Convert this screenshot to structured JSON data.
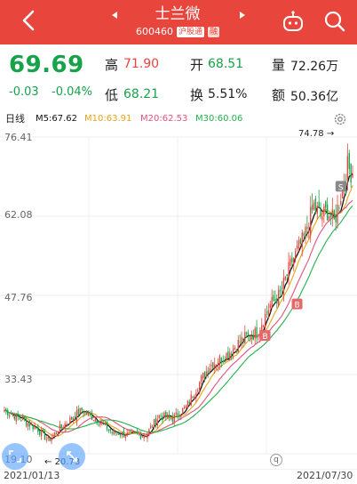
{
  "header": {
    "title": "士兰微",
    "code": "600460",
    "tag_connect": "沪股通",
    "tag_margin": "融",
    "icons": [
      "back-icon",
      "prev-stock-icon",
      "next-stock-icon",
      "robot-icon",
      "search-icon"
    ]
  },
  "quote": {
    "price": "69.69",
    "change": "-0.03",
    "change_pct": "-0.04%",
    "high_label": "高",
    "high": "71.90",
    "low_label": "低",
    "low": "68.21",
    "open_label": "开",
    "open": "68.51",
    "turnover_label": "换",
    "turnover": "5.51%",
    "volume_label": "量",
    "volume": "72.26万",
    "amount_label": "额",
    "amount": "50.36亿"
  },
  "ma_strip": {
    "period": "日线",
    "ma5": "M5:67.62",
    "ma10": "M10:63.91",
    "ma20": "M20:62.53",
    "ma30": "M30:60.06"
  },
  "chart_data": {
    "type": "candlestick",
    "y_ticks": [
      "76.41",
      "62.08",
      "47.76",
      "33.43",
      "19.10"
    ],
    "ylim": [
      19.1,
      76.41
    ],
    "x_start": "2021/01/13",
    "x_end": "2021/07/30",
    "max_label": "74.78",
    "min_label": "20.73",
    "markers": [
      "S",
      "B",
      "B"
    ],
    "colors": {
      "up": "#e8453c",
      "down": "#16a34a",
      "ma5": "#111111",
      "ma10": "#e8a317",
      "ma20": "#e2527a",
      "ma30": "#22b14c"
    }
  }
}
